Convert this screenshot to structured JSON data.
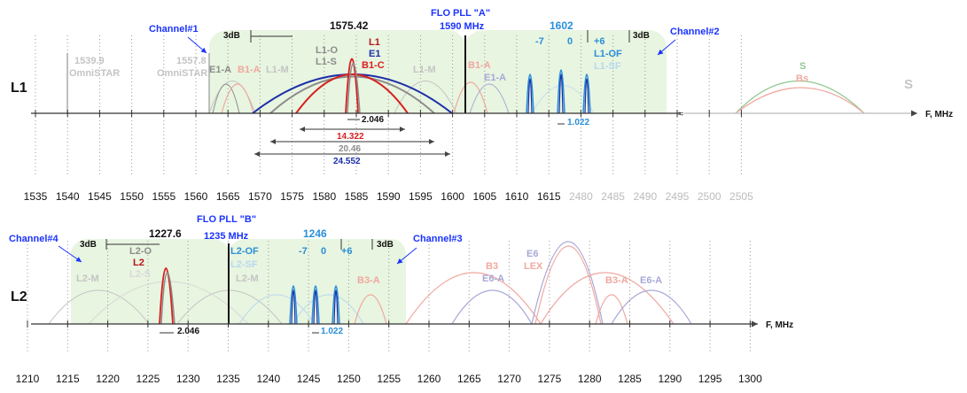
{
  "colors": {
    "green_band": "#e8f5e0",
    "blue_dark": "#1c2fa8",
    "blue_label": "#1a33ff",
    "blue_light": "#2a8fd8",
    "red": "#d62020",
    "gray": "#8c8c8c",
    "light_gray": "#c4c4c4",
    "pink": "#f0a8a0",
    "lavender": "#a8a8d8",
    "green_curve": "#90c890",
    "black": "#111111"
  },
  "axis_unit": "F, MHz",
  "l1": {
    "row_label": "L1",
    "channel1": "Channel#1",
    "channel2": "Channel#2",
    "flo_title": "FLO PLL \"A\"",
    "flo_freq": "1590 MHz",
    "db3_left": "3dB",
    "db3_right": "3dB",
    "freq_1575": "1575.42",
    "freq_1602": "1602",
    "omnistar1_freq": "1539.9",
    "omnistar1_name": "OmniSTAR",
    "omnistar2_freq": "1557.8",
    "omnistar2_name": "OmniSTAR",
    "e1a_left": "E1-A",
    "b1a_left": "B1-A",
    "l1m_left": "L1-M",
    "l1o": "L1-O",
    "l1s": "L1-S",
    "l1": "L1",
    "e1": "E1",
    "b1c": "B1-C",
    "l1m_right": "L1-M",
    "b1a_right": "B1-A",
    "e1a_right": "E1-A",
    "m7": "-7",
    "zero": "0",
    "p6": "+6",
    "l1of": "L1-OF",
    "l1sf": "L1-SF",
    "s_curve": "S",
    "bs_curve": "Bs",
    "s_big": "S",
    "bw_2046": "2.046",
    "bw_1022": "1.022",
    "bw_14322": "14.322",
    "bw_2046b": "20.46",
    "bw_24552": "24.552",
    "ticks": [
      "1535",
      "1540",
      "1545",
      "1550",
      "1555",
      "1560",
      "1565",
      "1570",
      "1575",
      "1580",
      "1585",
      "1590",
      "1595",
      "1600",
      "1605",
      "1610",
      "1615",
      "2480",
      "2485",
      "2490",
      "2495",
      "2500",
      "2505"
    ]
  },
  "l2": {
    "row_label": "L2",
    "channel4": "Channel#4",
    "channel3": "Channel#3",
    "flo_title": "FLO PLL \"B\"",
    "flo_freq": "1235 MHz",
    "db3_left": "3dB",
    "db3_right": "3dB",
    "freq_1227": "1227.6",
    "freq_1246": "1246",
    "l2o": "L2-O",
    "l2": "L2",
    "l2s": "L2-S",
    "l2m_left": "L2-M",
    "l2m_right": "L2-M",
    "l2of": "L2-OF",
    "l2sf": "L2-SF",
    "m7": "-7",
    "zero": "0",
    "p6": "+6",
    "b3a_1": "B3-A",
    "b3": "B3",
    "e6a_1": "E6-A",
    "e6": "E6",
    "lex": "LEX",
    "b3a_2": "B3-A",
    "e6a_2": "E6-A",
    "bw_2046": "2.046",
    "bw_1022": "1.022",
    "ticks": [
      "1210",
      "1215",
      "1220",
      "1225",
      "1230",
      "1235",
      "1240",
      "1245",
      "1250",
      "1255",
      "1260",
      "1265",
      "1270",
      "1275",
      "1280",
      "1285",
      "1290",
      "1295",
      "1300"
    ]
  }
}
